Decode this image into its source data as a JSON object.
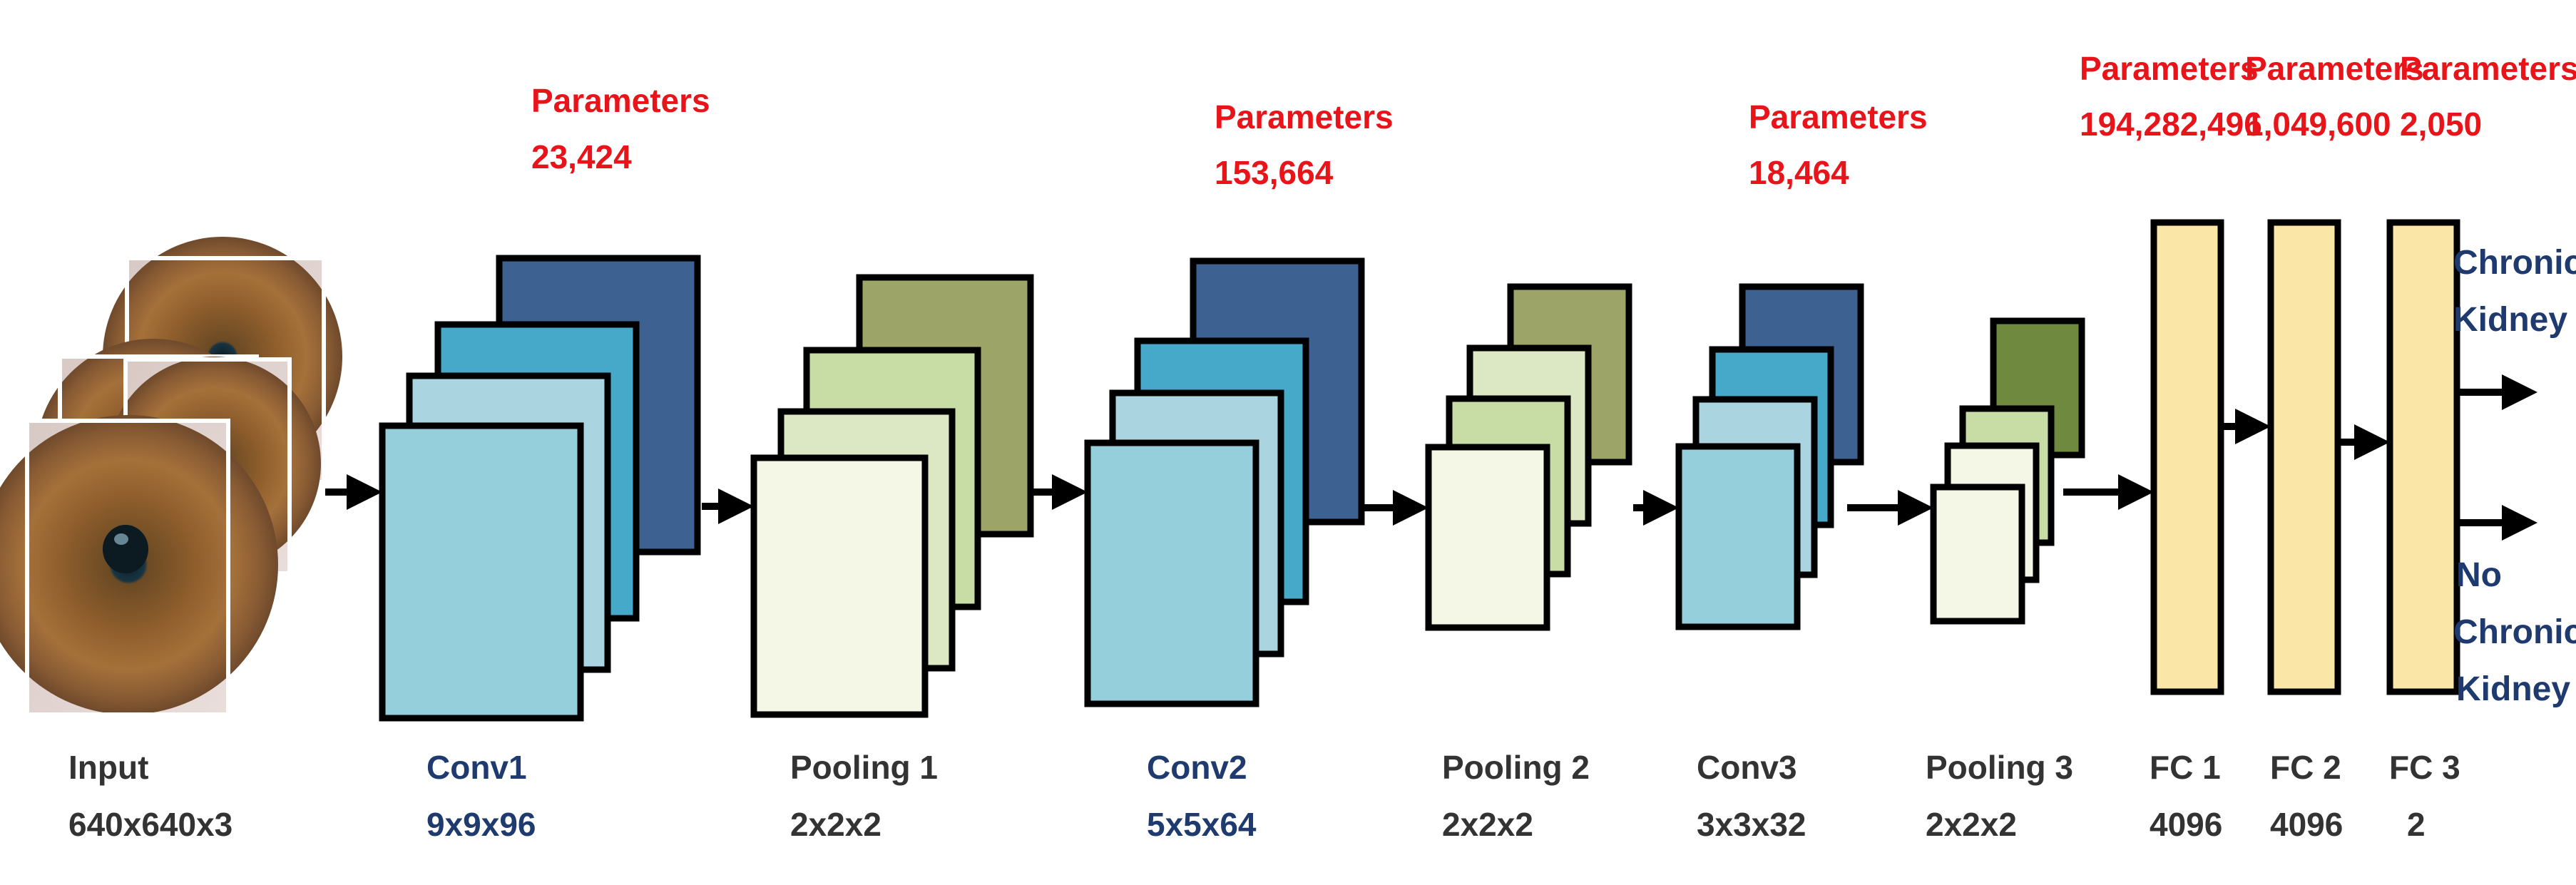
{
  "colors": {
    "param_red": "#e8141a",
    "label_dark": "#333333",
    "label_blue": "#1f3a6e",
    "conv_dark": "#3d6190",
    "conv_mid": "#46a9c9",
    "conv_light": "#a9d4e0",
    "conv_front": "#95cfdc",
    "pool_olive": "#9ca468",
    "pool_mid": "#c8dca5",
    "pool_light": "#dce8c4",
    "pool_front": "#f5f7e6",
    "fc_fill": "#fae6a6"
  },
  "layers": [
    {
      "id": "input",
      "name": "Input",
      "size": "640x640x3",
      "label_color": "dark"
    },
    {
      "id": "conv1",
      "name": "Conv1",
      "size": "9x9x96",
      "label_color": "blue",
      "params_title": "Parameters",
      "params": "23,424"
    },
    {
      "id": "pool1",
      "name": "Pooling 1",
      "size": "2x2x2",
      "label_color": "dark"
    },
    {
      "id": "conv2",
      "name": "Conv2",
      "size": "5x5x64",
      "label_color": "blue",
      "params_title": "Parameters",
      "params": "153,664"
    },
    {
      "id": "pool2",
      "name": "Pooling 2",
      "size": "2x2x2",
      "label_color": "dark"
    },
    {
      "id": "conv3",
      "name": "Conv3",
      "size": "3x3x32",
      "label_color": "dark",
      "params_title": "Parameters",
      "params": "18,464"
    },
    {
      "id": "pool3",
      "name": "Pooling 3",
      "size": "2x2x2",
      "label_color": "dark"
    },
    {
      "id": "fc1",
      "name": "FC 1",
      "size": "4096",
      "label_color": "dark",
      "params_title": "Parameters",
      "params": "194,282,496"
    },
    {
      "id": "fc2",
      "name": "FC 2",
      "size": "4096",
      "label_color": "dark",
      "params_title": "Parameters",
      "params": "1,049,600"
    },
    {
      "id": "fc3",
      "name": "FC 3",
      "size": "2",
      "label_color": "dark",
      "params_title": "Parameters",
      "params": "2,050"
    }
  ],
  "outputs": {
    "ckd": [
      "Chronic",
      "Kidney"
    ],
    "no_ckd": [
      "No",
      "Chronic",
      "Kidney"
    ]
  }
}
